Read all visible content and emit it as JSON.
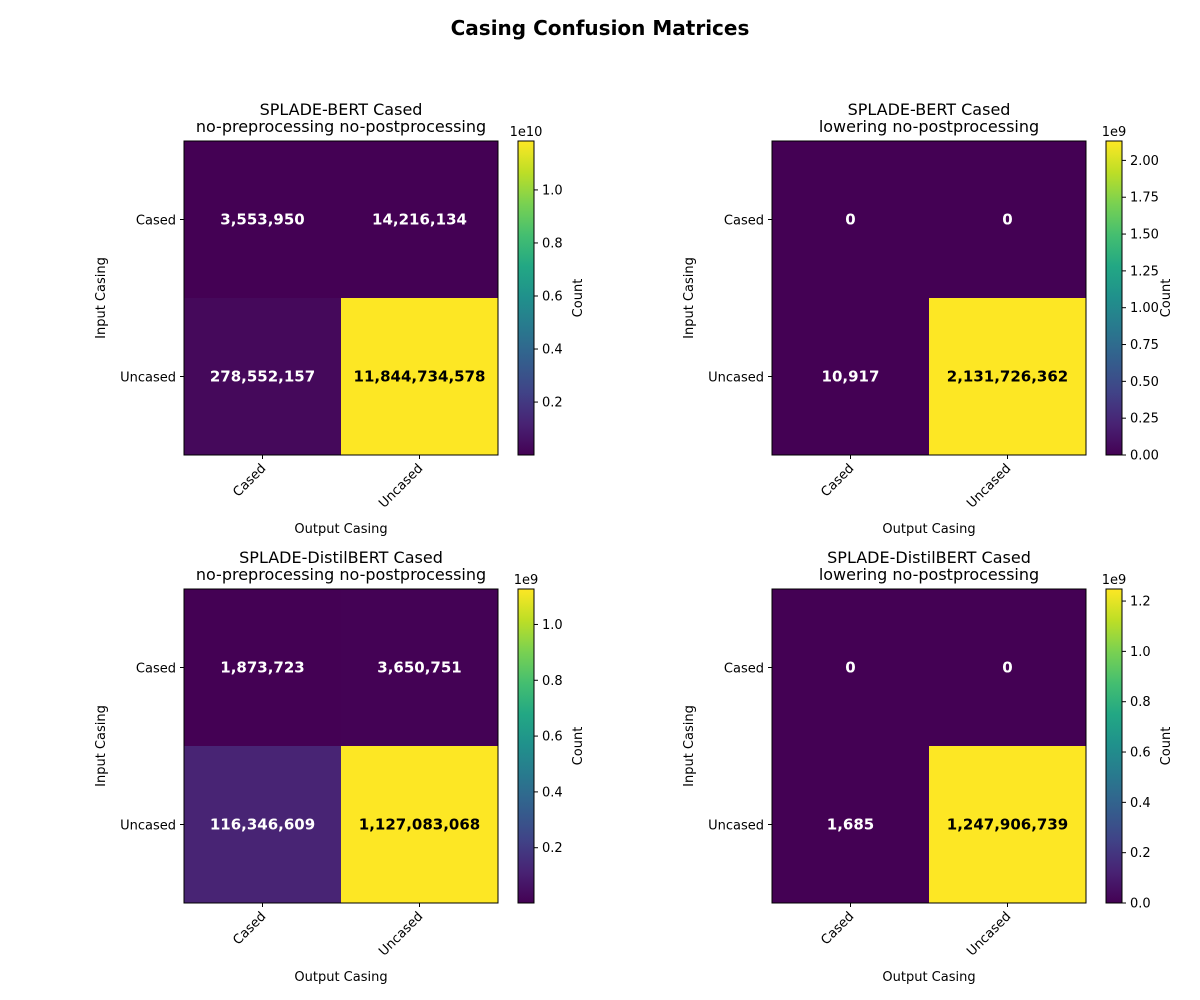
{
  "figure_title": "Casing Confusion Matrices",
  "chart_data": [
    {
      "type": "heatmap",
      "title": "SPLADE-BERT Cased",
      "subtitle": "no-preprocessing no-postprocessing",
      "xlabel": "Output Casing",
      "ylabel": "Input Casing",
      "x_categories": [
        "Cased",
        "Uncased"
      ],
      "y_categories": [
        "Cased",
        "Uncased"
      ],
      "values": [
        [
          3553950,
          14216134
        ],
        [
          278552157,
          11844734578
        ]
      ],
      "cell_labels": [
        [
          "3,553,950",
          "14,216,134"
        ],
        [
          "278,552,157",
          "11,844,734,578"
        ]
      ],
      "colorbar": {
        "label": "Count",
        "multiplier": "1e10",
        "scale": 10000000000,
        "range": [
          3553950,
          11844734578
        ],
        "ticks": [
          0.2,
          0.4,
          0.6,
          0.8,
          1.0
        ],
        "tick_labels": [
          "0.2",
          "0.4",
          "0.6",
          "0.8",
          "1.0"
        ]
      }
    },
    {
      "type": "heatmap",
      "title": "SPLADE-BERT Cased",
      "subtitle": "lowering no-postprocessing",
      "xlabel": "Output Casing",
      "ylabel": "Input Casing",
      "x_categories": [
        "Cased",
        "Uncased"
      ],
      "y_categories": [
        "Cased",
        "Uncased"
      ],
      "values": [
        [
          0,
          0
        ],
        [
          10917,
          2131726362
        ]
      ],
      "cell_labels": [
        [
          "0",
          "0"
        ],
        [
          "10,917",
          "2,131,726,362"
        ]
      ],
      "colorbar": {
        "label": "Count",
        "multiplier": "1e9",
        "scale": 1000000000,
        "range": [
          0,
          2131726362
        ],
        "ticks": [
          0,
          0.25,
          0.5,
          0.75,
          1.0,
          1.25,
          1.5,
          1.75,
          2.0
        ],
        "tick_labels": [
          "0.00",
          "0.25",
          "0.50",
          "0.75",
          "1.00",
          "1.25",
          "1.50",
          "1.75",
          "2.00"
        ]
      }
    },
    {
      "type": "heatmap",
      "title": "SPLADE-DistilBERT Cased",
      "subtitle": "no-preprocessing no-postprocessing",
      "xlabel": "Output Casing",
      "ylabel": "Input Casing",
      "x_categories": [
        "Cased",
        "Uncased"
      ],
      "y_categories": [
        "Cased",
        "Uncased"
      ],
      "values": [
        [
          1873723,
          3650751
        ],
        [
          116346609,
          1127083068
        ]
      ],
      "cell_labels": [
        [
          "1,873,723",
          "3,650,751"
        ],
        [
          "116,346,609",
          "1,127,083,068"
        ]
      ],
      "colorbar": {
        "label": "Count",
        "multiplier": "1e9",
        "scale": 1000000000,
        "range": [
          1873723,
          1127083068
        ],
        "ticks": [
          0.2,
          0.4,
          0.6,
          0.8,
          1.0
        ],
        "tick_labels": [
          "0.2",
          "0.4",
          "0.6",
          "0.8",
          "1.0"
        ]
      }
    },
    {
      "type": "heatmap",
      "title": "SPLADE-DistilBERT Cased",
      "subtitle": "lowering no-postprocessing",
      "xlabel": "Output Casing",
      "ylabel": "Input Casing",
      "x_categories": [
        "Cased",
        "Uncased"
      ],
      "y_categories": [
        "Cased",
        "Uncased"
      ],
      "values": [
        [
          0,
          0
        ],
        [
          1685,
          1247906739
        ]
      ],
      "cell_labels": [
        [
          "0",
          "0"
        ],
        [
          "1,685",
          "1,247,906,739"
        ]
      ],
      "colorbar": {
        "label": "Count",
        "multiplier": "1e9",
        "scale": 1000000000,
        "range": [
          0,
          1247906739
        ],
        "ticks": [
          0,
          0.2,
          0.4,
          0.6,
          0.8,
          1.0,
          1.2
        ],
        "tick_labels": [
          "0.0",
          "0.2",
          "0.4",
          "0.6",
          "0.8",
          "1.0",
          "1.2"
        ]
      }
    }
  ]
}
